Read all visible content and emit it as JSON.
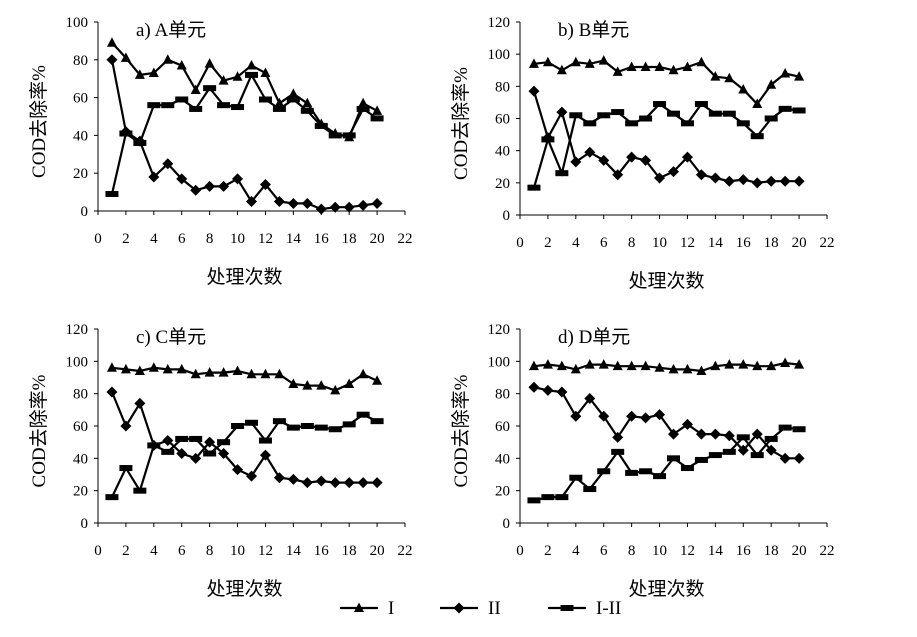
{
  "chart_data": [
    {
      "type": "line",
      "title": "a) A单元",
      "xlabel": "处理次数",
      "ylabel": "COD去除率%",
      "xlim": [
        0,
        22
      ],
      "ylim": [
        0,
        100
      ],
      "xticks": [
        0,
        2,
        4,
        6,
        8,
        10,
        12,
        14,
        16,
        18,
        20,
        22
      ],
      "yticks": [
        0,
        20,
        40,
        60,
        80,
        100
      ],
      "x": [
        1,
        2,
        3,
        4,
        5,
        6,
        7,
        8,
        9,
        10,
        11,
        12,
        13,
        14,
        15,
        16,
        17,
        18,
        19,
        20
      ],
      "series": [
        {
          "name": "I",
          "marker": "triangle",
          "values": [
            89,
            81,
            72,
            73,
            80,
            77,
            64,
            78,
            69,
            71,
            77,
            73,
            57,
            62,
            57,
            46,
            41,
            39,
            57,
            53
          ]
        },
        {
          "name": "II",
          "marker": "diamond",
          "values": [
            80,
            42,
            37,
            18,
            25,
            17,
            11,
            13,
            13,
            17,
            5,
            14,
            5,
            4,
            4,
            1,
            2,
            2,
            3,
            4
          ]
        },
        {
          "name": "I-II",
          "marker": "square",
          "values": [
            9,
            41,
            36,
            56,
            56,
            59,
            54,
            65,
            56,
            55,
            72,
            59,
            54,
            59,
            53,
            45,
            40,
            40,
            54,
            49
          ]
        }
      ]
    },
    {
      "type": "line",
      "title": "b) B单元",
      "xlabel": "处理次数",
      "ylabel": "COD去除率%",
      "xlim": [
        0,
        22
      ],
      "ylim": [
        0,
        120
      ],
      "xticks": [
        0,
        2,
        4,
        6,
        8,
        10,
        12,
        14,
        16,
        18,
        20,
        22
      ],
      "yticks": [
        0,
        20,
        40,
        60,
        80,
        100,
        120
      ],
      "x": [
        1,
        2,
        3,
        4,
        5,
        6,
        7,
        8,
        9,
        10,
        11,
        12,
        13,
        14,
        15,
        16,
        17,
        18,
        19,
        20
      ],
      "series": [
        {
          "name": "I",
          "marker": "triangle",
          "values": [
            94,
            95,
            90,
            95,
            94,
            96,
            89,
            92,
            92,
            92,
            90,
            92,
            95,
            86,
            85,
            78,
            69,
            81,
            88,
            86
          ]
        },
        {
          "name": "II",
          "marker": "diamond",
          "values": [
            77,
            48,
            64,
            33,
            39,
            34,
            25,
            36,
            34,
            23,
            27,
            36,
            25,
            23,
            21,
            22,
            20,
            21,
            21,
            21
          ]
        },
        {
          "name": "I-II",
          "marker": "square",
          "values": [
            17,
            47,
            26,
            62,
            57,
            62,
            64,
            57,
            60,
            69,
            63,
            57,
            69,
            63,
            63,
            57,
            49,
            60,
            66,
            65
          ]
        }
      ]
    },
    {
      "type": "line",
      "title": "c) C单元",
      "xlabel": "处理次数",
      "ylabel": "COD去除率%",
      "xlim": [
        0,
        22
      ],
      "ylim": [
        0,
        120
      ],
      "xticks": [
        0,
        2,
        4,
        6,
        8,
        10,
        12,
        14,
        16,
        18,
        20,
        22
      ],
      "yticks": [
        0,
        20,
        40,
        60,
        80,
        100,
        120
      ],
      "x": [
        1,
        2,
        3,
        4,
        5,
        6,
        7,
        8,
        9,
        10,
        11,
        12,
        13,
        14,
        15,
        16,
        17,
        18,
        19,
        20
      ],
      "series": [
        {
          "name": "I",
          "marker": "triangle",
          "values": [
            96,
            95,
            94,
            96,
            95,
            95,
            92,
            93,
            93,
            94,
            92,
            92,
            92,
            86,
            85,
            85,
            82,
            86,
            92,
            88
          ]
        },
        {
          "name": "II",
          "marker": "diamond",
          "values": [
            81,
            60,
            74,
            48,
            51,
            43,
            40,
            50,
            43,
            33,
            29,
            42,
            28,
            27,
            25,
            26,
            25,
            25,
            25,
            25
          ]
        },
        {
          "name": "I-II",
          "marker": "square",
          "values": [
            16,
            34,
            20,
            48,
            44,
            52,
            52,
            43,
            50,
            60,
            62,
            51,
            63,
            59,
            60,
            59,
            58,
            61,
            67,
            63
          ]
        }
      ]
    },
    {
      "type": "line",
      "title": "d) D单元",
      "xlabel": "处理次数",
      "ylabel": "COD去除率%",
      "xlim": [
        0,
        22
      ],
      "ylim": [
        0,
        120
      ],
      "xticks": [
        0,
        2,
        4,
        6,
        8,
        10,
        12,
        14,
        16,
        18,
        20,
        22
      ],
      "yticks": [
        0,
        20,
        40,
        60,
        80,
        100,
        120
      ],
      "x": [
        1,
        2,
        3,
        4,
        5,
        6,
        7,
        8,
        9,
        10,
        11,
        12,
        13,
        14,
        15,
        16,
        17,
        18,
        19,
        20
      ],
      "series": [
        {
          "name": "I",
          "marker": "triangle",
          "values": [
            97,
            98,
            97,
            95,
            98,
            98,
            97,
            97,
            97,
            96,
            95,
            95,
            94,
            97,
            98,
            98,
            97,
            97,
            99,
            98
          ]
        },
        {
          "name": "II",
          "marker": "diamond",
          "values": [
            84,
            82,
            81,
            66,
            77,
            66,
            53,
            66,
            65,
            67,
            55,
            61,
            55,
            55,
            54,
            45,
            55,
            45,
            40,
            40
          ]
        },
        {
          "name": "I-II",
          "marker": "square",
          "values": [
            14,
            16,
            16,
            28,
            21,
            32,
            44,
            31,
            32,
            29,
            40,
            34,
            39,
            42,
            44,
            53,
            42,
            52,
            59,
            58
          ]
        }
      ]
    }
  ],
  "legend": {
    "placement": "bottom-center",
    "entries": [
      {
        "name": "I",
        "marker": "triangle"
      },
      {
        "name": "II",
        "marker": "diamond"
      },
      {
        "name": "I-II",
        "marker": "square"
      }
    ]
  }
}
